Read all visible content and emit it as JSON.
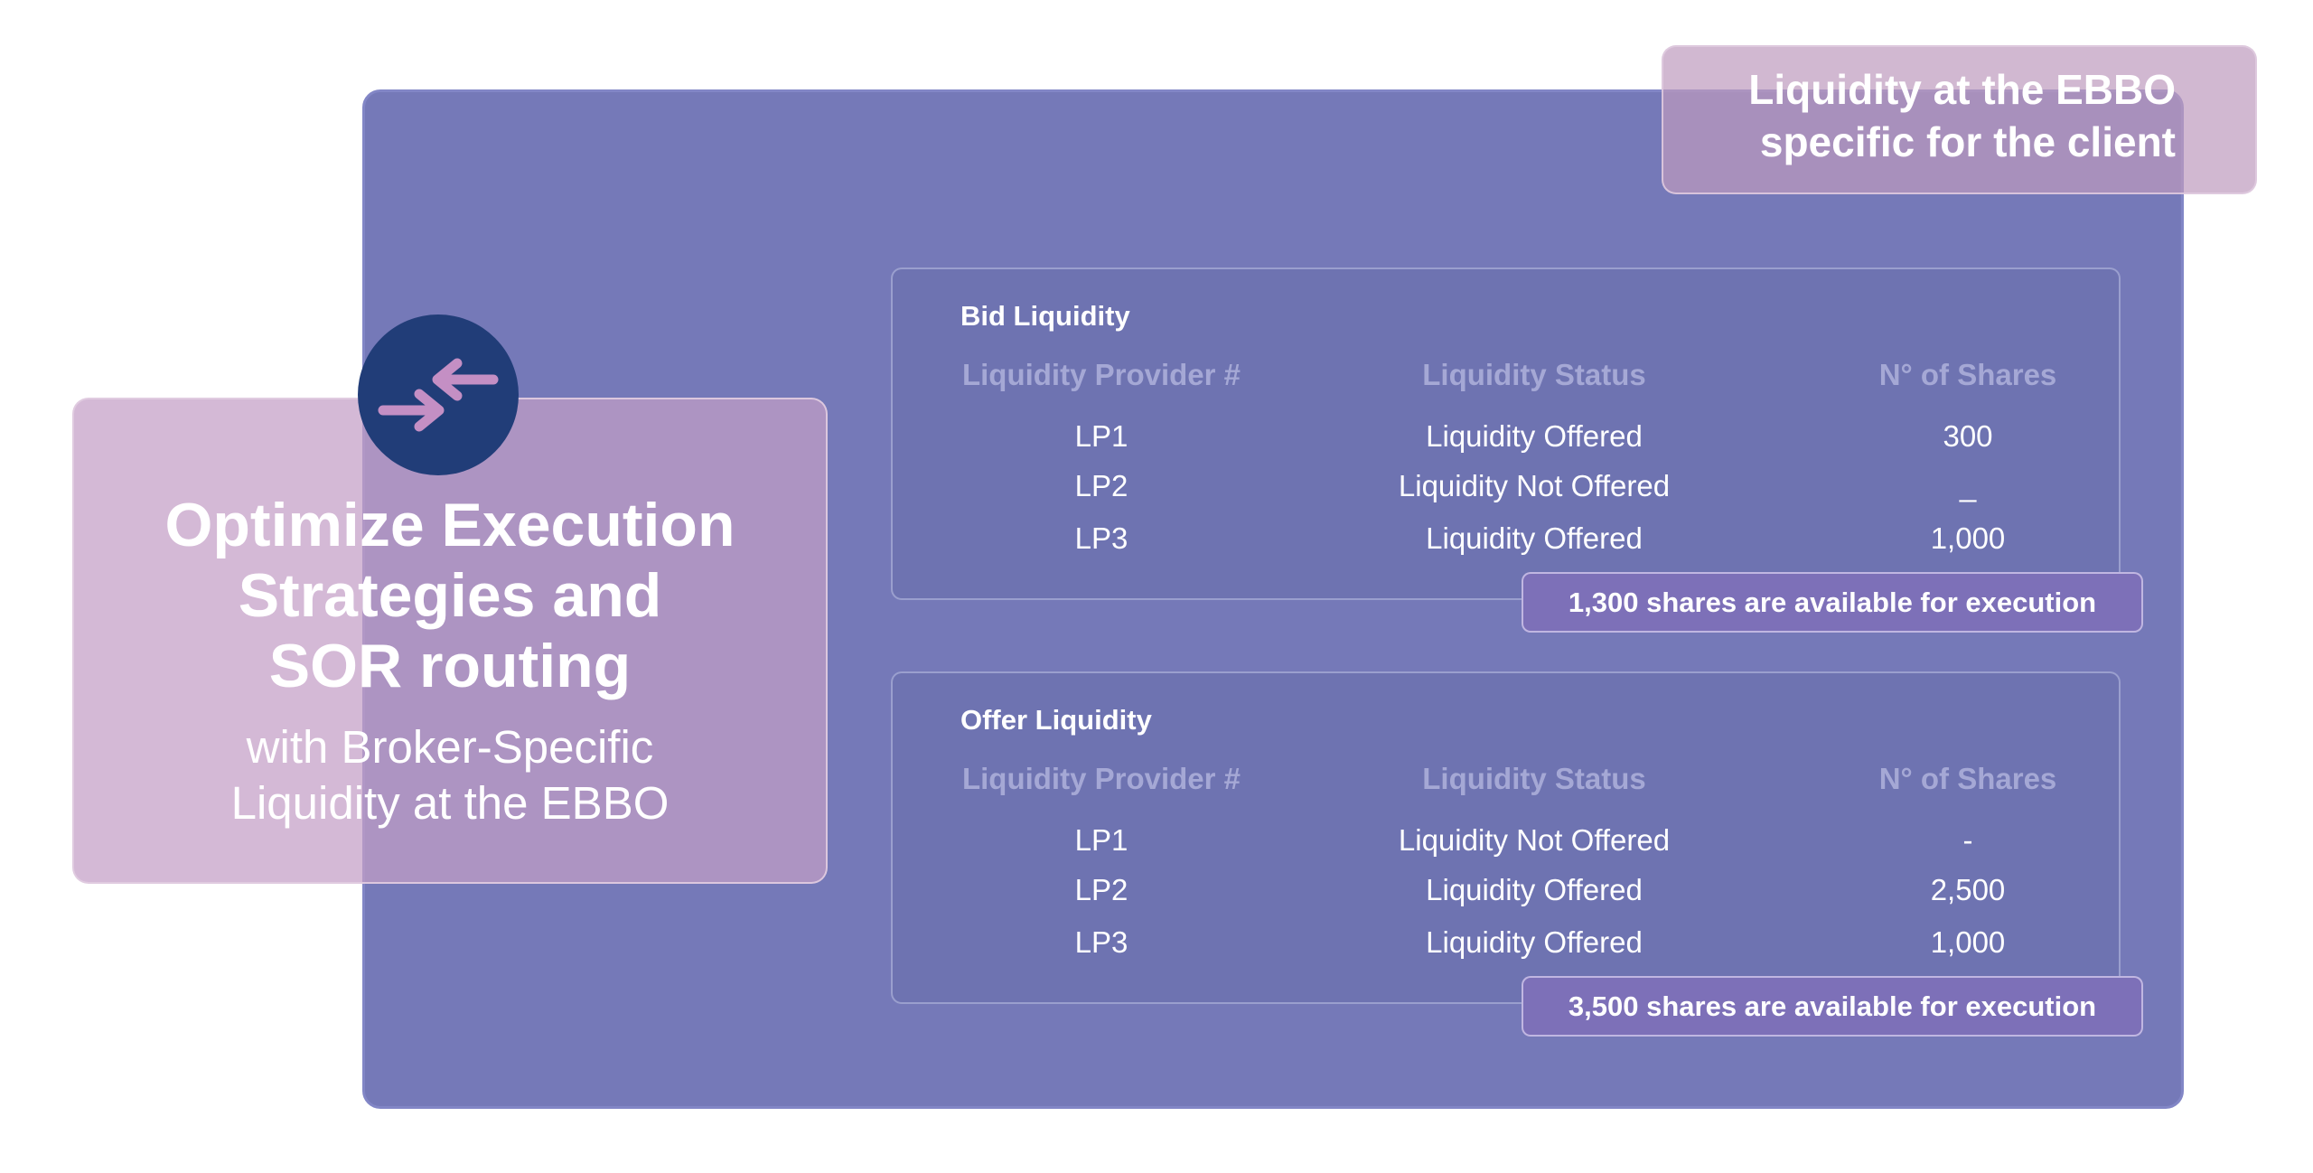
{
  "badge": {
    "line1": "Liquidity at the EBBO",
    "line2": "specific for the client"
  },
  "hero": {
    "title_lines": [
      "Optimize Execution",
      "Strategies and",
      "SOR routing"
    ],
    "subtitle_lines": [
      "with Broker-Specific",
      "Liquidity at the EBBO"
    ],
    "icon": "arrows-converge-icon"
  },
  "tables": {
    "bid": {
      "title": "Bid Liquidity",
      "headers": [
        "Liquidity Provider #",
        "Liquidity Status",
        "N° of Shares"
      ],
      "rows": [
        [
          "LP1",
          "Liquidity Offered",
          "300"
        ],
        [
          "LP2",
          "Liquidity Not Offered",
          "_"
        ],
        [
          "LP3",
          "Liquidity Offered",
          "1,000"
        ]
      ],
      "summary": "1,300 shares are available for execution"
    },
    "offer": {
      "title": "Offer Liquidity",
      "headers": [
        "Liquidity Provider #",
        "Liquidity Status",
        "N° of Shares"
      ],
      "rows": [
        [
          "LP1",
          "Liquidity Not Offered",
          "-"
        ],
        [
          "LP2",
          "Liquidity Offered",
          "2,500"
        ],
        [
          "LP3",
          "Liquidity Offered",
          "1,000"
        ]
      ],
      "summary": "3,500 shares are available for execution"
    }
  },
  "colors": {
    "panel": "#7579b8",
    "card": "#6e73b1",
    "pink_overlay": "#c39ec6",
    "icon_circle": "#213d78",
    "icon_arrows": "#c48fc4",
    "summary": "#7d70b8"
  }
}
